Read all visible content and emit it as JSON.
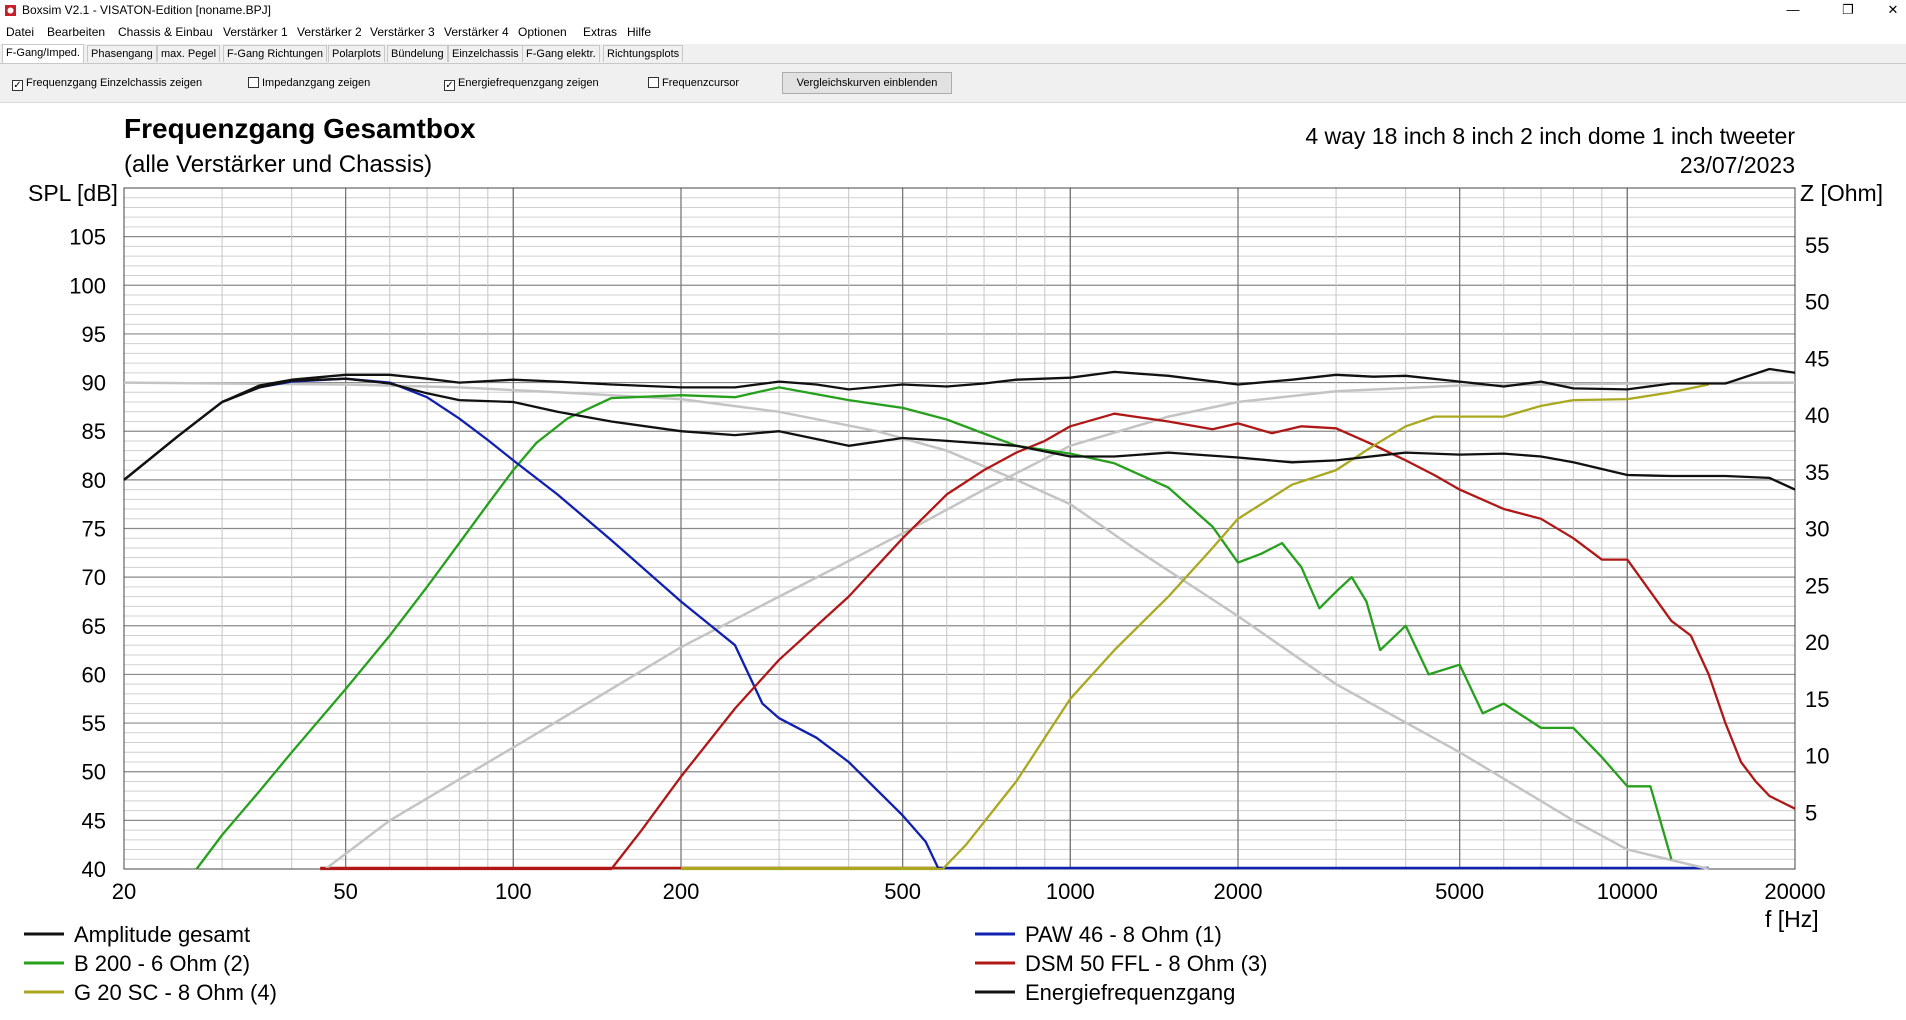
{
  "window": {
    "title": "Boxsim V2.1 - VISATON-Edition [noname.BPJ]"
  },
  "menu": [
    "Datei",
    "Bearbeiten",
    "Chassis & Einbau",
    "Verstärker 1",
    "Verstärker 2",
    "Verstärker 3",
    "Verstärker 4",
    "Optionen",
    "Extras",
    "Hilfe"
  ],
  "tabs": [
    "F-Gang/Imped.",
    "Phasengang",
    "max. Pegel",
    "F-Gang Richtungen",
    "Polarplots",
    "Bündelung",
    "Einzelchassis",
    "F-Gang elektr.",
    "Richtungsplots"
  ],
  "active_tab": "F-Gang/Imped.",
  "options": {
    "checkboxes": [
      {
        "label": "Frequenzgang Einzelchassis zeigen",
        "checked": true
      },
      {
        "label": "Impedanzgang zeigen",
        "checked": false
      },
      {
        "label": "Energiefrequenzgang zeigen",
        "checked": true
      },
      {
        "label": "Frequenzcursor",
        "checked": false
      }
    ],
    "compare_button": "Vergleichskurven einblenden"
  },
  "colors": {
    "total": "#111111",
    "woofer": "#1020b0",
    "bass": "#27a01e",
    "mid": "#b01818",
    "tweeter": "#aaa820",
    "energy": "#111111",
    "grey": "#c4c4c4",
    "grid": "#aaaaaa",
    "grid_major": "#707070"
  },
  "chart_data": {
    "type": "line",
    "title": "Frequenzgang Gesamtbox",
    "subtitle": "(alle Verstärker und Chassis)",
    "info_line1": "4 way 18 inch 8 inch 2 inch dome 1 inch tweeter",
    "info_line2": "23/07/2023",
    "ylabel": "SPL [dB]",
    "y2label": "Z [Ohm]",
    "xlabel": "f [Hz]",
    "xscale": "log",
    "xlim": [
      20,
      20000
    ],
    "ylim": [
      40,
      110
    ],
    "y2lim": [
      0,
      60
    ],
    "xticks": [
      20,
      50,
      100,
      200,
      500,
      1000,
      2000,
      5000,
      10000,
      20000
    ],
    "xtick_labels": [
      "20",
      "50",
      "100",
      "200",
      "500",
      "1000",
      "2000",
      "5000",
      "10000",
      "20000"
    ],
    "yticks": [
      40,
      45,
      50,
      55,
      60,
      65,
      70,
      75,
      80,
      85,
      90,
      95,
      100,
      105
    ],
    "y2ticks": [
      5,
      10,
      15,
      20,
      25,
      30,
      35,
      40,
      45,
      50,
      55
    ],
    "grid": true,
    "legend_position": "bottom",
    "series": [
      {
        "name": "Amplitude gesamt",
        "color_key": "total",
        "points": [
          [
            20,
            80
          ],
          [
            25,
            84.5
          ],
          [
            30,
            88
          ],
          [
            35,
            89.7
          ],
          [
            40,
            90.3
          ],
          [
            50,
            90.8
          ],
          [
            60,
            90.8
          ],
          [
            70,
            90.4
          ],
          [
            80,
            90
          ],
          [
            100,
            90.3
          ],
          [
            120,
            90.1
          ],
          [
            150,
            89.8
          ],
          [
            200,
            89.5
          ],
          [
            250,
            89.5
          ],
          [
            300,
            90.1
          ],
          [
            350,
            89.8
          ],
          [
            400,
            89.3
          ],
          [
            500,
            89.8
          ],
          [
            600,
            89.6
          ],
          [
            700,
            89.9
          ],
          [
            800,
            90.3
          ],
          [
            1000,
            90.5
          ],
          [
            1200,
            91.1
          ],
          [
            1500,
            90.7
          ],
          [
            2000,
            89.8
          ],
          [
            2500,
            90.3
          ],
          [
            3000,
            90.8
          ],
          [
            3500,
            90.6
          ],
          [
            4000,
            90.7
          ],
          [
            5000,
            90.1
          ],
          [
            6000,
            89.6
          ],
          [
            7000,
            90.1
          ],
          [
            8000,
            89.4
          ],
          [
            10000,
            89.3
          ],
          [
            12000,
            89.9
          ],
          [
            15000,
            89.9
          ],
          [
            18000,
            91.4
          ],
          [
            20000,
            91.0
          ]
        ]
      },
      {
        "name": "B 200 - 6 Ohm (2)",
        "color_key": "bass",
        "points": [
          [
            27,
            40
          ],
          [
            30,
            43.5
          ],
          [
            35,
            48
          ],
          [
            40,
            52
          ],
          [
            50,
            58.5
          ],
          [
            60,
            64
          ],
          [
            70,
            69
          ],
          [
            80,
            73.5
          ],
          [
            90,
            77.5
          ],
          [
            100,
            81
          ],
          [
            110,
            83.8
          ],
          [
            125,
            86.3
          ],
          [
            150,
            88.4
          ],
          [
            200,
            88.7
          ],
          [
            250,
            88.5
          ],
          [
            300,
            89.5
          ],
          [
            400,
            88.2
          ],
          [
            500,
            87.4
          ],
          [
            600,
            86.2
          ],
          [
            800,
            83.5
          ],
          [
            1000,
            82.7
          ],
          [
            1200,
            81.7
          ],
          [
            1500,
            79.2
          ],
          [
            1800,
            75.2
          ],
          [
            2000,
            71.5
          ],
          [
            2200,
            72.4
          ],
          [
            2400,
            73.5
          ],
          [
            2600,
            71
          ],
          [
            2800,
            66.8
          ],
          [
            3000,
            68.5
          ],
          [
            3200,
            70
          ],
          [
            3400,
            67.5
          ],
          [
            3600,
            62.5
          ],
          [
            4000,
            65
          ],
          [
            4400,
            60
          ],
          [
            5000,
            61
          ],
          [
            5500,
            56
          ],
          [
            6000,
            57
          ],
          [
            7000,
            54.5
          ],
          [
            8000,
            54.5
          ],
          [
            9000,
            51.5
          ],
          [
            10000,
            48.5
          ],
          [
            11000,
            48.5
          ],
          [
            12000,
            41
          ]
        ]
      },
      {
        "name": "PAW 46 - 8 Ohm (1)",
        "color_key": "woofer",
        "points": [
          [
            20,
            80
          ],
          [
            25,
            84.5
          ],
          [
            30,
            88
          ],
          [
            35,
            89.5
          ],
          [
            40,
            90.1
          ],
          [
            50,
            90.4
          ],
          [
            60,
            90
          ],
          [
            70,
            88.5
          ],
          [
            80,
            86.3
          ],
          [
            90,
            84.1
          ],
          [
            100,
            82
          ],
          [
            120,
            78.5
          ],
          [
            150,
            73.8
          ],
          [
            200,
            67.5
          ],
          [
            250,
            63
          ],
          [
            280,
            57
          ],
          [
            300,
            55.5
          ],
          [
            350,
            53.5
          ],
          [
            400,
            51
          ],
          [
            500,
            45.5
          ],
          [
            550,
            42.8
          ],
          [
            580,
            40
          ]
        ]
      },
      {
        "name": "DSM 50 FFL - 8 Ohm (3)",
        "color_key": "mid",
        "points": [
          [
            45,
            40
          ],
          [
            150,
            40
          ],
          [
            170,
            44
          ],
          [
            200,
            49.5
          ],
          [
            250,
            56.5
          ],
          [
            300,
            61.5
          ],
          [
            400,
            68
          ],
          [
            500,
            74
          ],
          [
            600,
            78.5
          ],
          [
            700,
            81
          ],
          [
            800,
            82.8
          ],
          [
            900,
            84
          ],
          [
            1000,
            85.5
          ],
          [
            1200,
            86.8
          ],
          [
            1500,
            86
          ],
          [
            1800,
            85.2
          ],
          [
            2000,
            85.8
          ],
          [
            2300,
            84.8
          ],
          [
            2600,
            85.5
          ],
          [
            3000,
            85.3
          ],
          [
            3500,
            83.6
          ],
          [
            4000,
            82
          ],
          [
            4500,
            80.5
          ],
          [
            5000,
            79
          ],
          [
            6000,
            77
          ],
          [
            7000,
            76
          ],
          [
            8000,
            74
          ],
          [
            9000,
            71.8
          ],
          [
            10000,
            71.8
          ],
          [
            11000,
            68.5
          ],
          [
            12000,
            65.5
          ],
          [
            13000,
            64
          ],
          [
            14000,
            60
          ],
          [
            15000,
            55
          ],
          [
            16000,
            51
          ],
          [
            17000,
            49
          ],
          [
            18000,
            47.5
          ],
          [
            20000,
            46.2
          ]
        ]
      },
      {
        "name": "G 20 SC - 8 Ohm (4)",
        "color_key": "tweeter",
        "points": [
          [
            200,
            40
          ],
          [
            590,
            40
          ],
          [
            650,
            42.5
          ],
          [
            800,
            49
          ],
          [
            1000,
            57.5
          ],
          [
            1200,
            62.5
          ],
          [
            1500,
            68
          ],
          [
            1800,
            73
          ],
          [
            2000,
            76
          ],
          [
            2500,
            79.5
          ],
          [
            3000,
            81
          ],
          [
            3500,
            83.5
          ],
          [
            4000,
            85.5
          ],
          [
            4500,
            86.5
          ],
          [
            5000,
            86.5
          ],
          [
            6000,
            86.5
          ],
          [
            7000,
            87.6
          ],
          [
            8000,
            88.2
          ],
          [
            10000,
            88.3
          ],
          [
            12000,
            89
          ],
          [
            14000,
            89.8
          ]
        ]
      },
      {
        "name": "Energiefrequenzgang",
        "color_key": "energy",
        "points": [
          [
            20,
            80
          ],
          [
            25,
            84.5
          ],
          [
            30,
            88
          ],
          [
            35,
            89.5
          ],
          [
            40,
            90.2
          ],
          [
            50,
            90.4
          ],
          [
            60,
            89.9
          ],
          [
            70,
            88.9
          ],
          [
            80,
            88.2
          ],
          [
            100,
            88
          ],
          [
            120,
            87
          ],
          [
            150,
            86
          ],
          [
            200,
            85
          ],
          [
            250,
            84.6
          ],
          [
            300,
            85
          ],
          [
            400,
            83.5
          ],
          [
            500,
            84.3
          ],
          [
            600,
            84
          ],
          [
            800,
            83.5
          ],
          [
            1000,
            82.4
          ],
          [
            1200,
            82.4
          ],
          [
            1500,
            82.8
          ],
          [
            2000,
            82.3
          ],
          [
            2500,
            81.8
          ],
          [
            3000,
            82
          ],
          [
            4000,
            82.8
          ],
          [
            5000,
            82.6
          ],
          [
            6000,
            82.7
          ],
          [
            7000,
            82.4
          ],
          [
            8000,
            81.8
          ],
          [
            10000,
            80.5
          ],
          [
            12000,
            80.4
          ],
          [
            15000,
            80.4
          ],
          [
            18000,
            80.2
          ],
          [
            20000,
            79
          ]
        ]
      }
    ],
    "reference_curves": [
      {
        "color_key": "grey",
        "points": [
          [
            20,
            90
          ],
          [
            30,
            89.9
          ],
          [
            50,
            89.8
          ],
          [
            80,
            89.5
          ],
          [
            120,
            89
          ],
          [
            200,
            88.3
          ],
          [
            300,
            87
          ],
          [
            450,
            85
          ],
          [
            600,
            83
          ],
          [
            800,
            80
          ],
          [
            1000,
            77.5
          ],
          [
            1300,
            73
          ],
          [
            2000,
            66
          ],
          [
            3000,
            59
          ],
          [
            5000,
            52
          ],
          [
            8000,
            45
          ],
          [
            10000,
            42
          ],
          [
            14000,
            40
          ]
        ]
      },
      {
        "color_key": "grey",
        "points": [
          [
            46,
            40
          ],
          [
            60,
            45
          ],
          [
            100,
            52.5
          ],
          [
            150,
            58.5
          ],
          [
            200,
            62.8
          ],
          [
            300,
            68
          ],
          [
            500,
            74.5
          ],
          [
            700,
            79
          ],
          [
            1000,
            83.5
          ],
          [
            1500,
            86.5
          ],
          [
            2000,
            88
          ],
          [
            3000,
            89.1
          ],
          [
            5000,
            89.7
          ],
          [
            10000,
            89.9
          ],
          [
            20000,
            90
          ]
        ]
      }
    ]
  },
  "legend": [
    {
      "label": "Amplitude gesamt",
      "color_key": "total",
      "column": 0,
      "row": 0
    },
    {
      "label": "B 200 - 6 Ohm (2)",
      "color_key": "bass",
      "column": 0,
      "row": 1
    },
    {
      "label": "G 20 SC - 8 Ohm (4)",
      "color_key": "tweeter",
      "column": 0,
      "row": 2
    },
    {
      "label": "PAW 46 - 8 Ohm (1)",
      "color_key": "woofer",
      "column": 1,
      "row": 0
    },
    {
      "label": "DSM 50 FFL - 8 Ohm (3)",
      "color_key": "mid",
      "column": 1,
      "row": 1
    },
    {
      "label": "Energiefrequenzgang",
      "color_key": "energy",
      "column": 1,
      "row": 2
    }
  ]
}
